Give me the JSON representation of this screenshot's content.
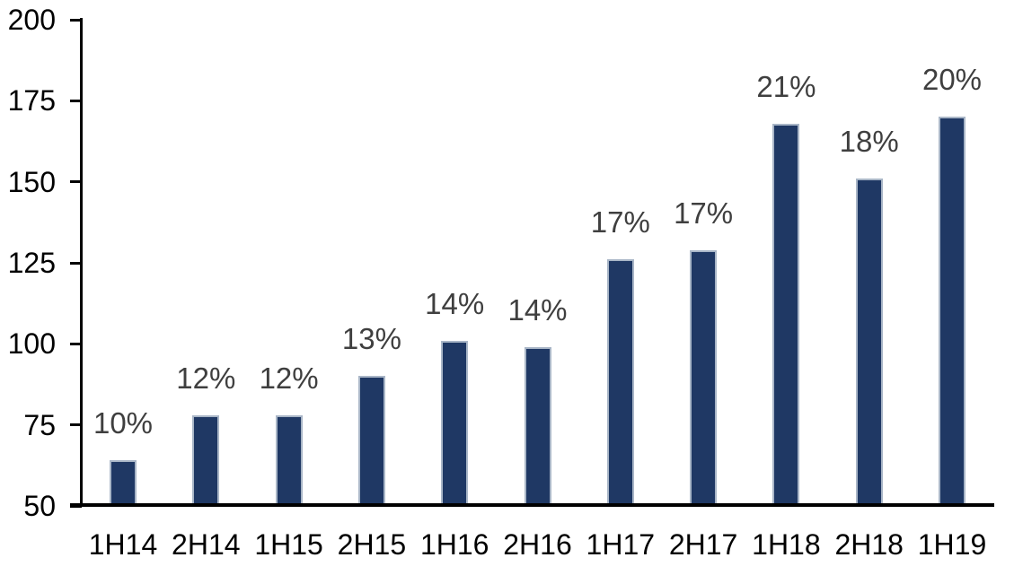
{
  "chart_data": {
    "type": "bar",
    "categories": [
      "1H14",
      "2H14",
      "1H15",
      "2H15",
      "1H16",
      "2H16",
      "1H17",
      "2H17",
      "1H18",
      "2H18",
      "1H19"
    ],
    "values": [
      64,
      78,
      78,
      90,
      101,
      99,
      126,
      129,
      168,
      151,
      170
    ],
    "data_labels": [
      "10%",
      "12%",
      "12%",
      "13%",
      "14%",
      "14%",
      "17%",
      "17%",
      "21%",
      "18%",
      "20%"
    ],
    "title": "",
    "xlabel": "",
    "ylabel": "",
    "ylim": [
      50,
      200
    ],
    "yticks": [
      50,
      75,
      100,
      125,
      150,
      175,
      200
    ],
    "grid": false,
    "legend": false,
    "colors": {
      "bar_fill": "#1f3864",
      "bar_border": "#a9b6c7",
      "data_label": "#3f3f3f",
      "axis": "#000000",
      "tick_label": "#000000",
      "background": "#ffffff"
    }
  }
}
